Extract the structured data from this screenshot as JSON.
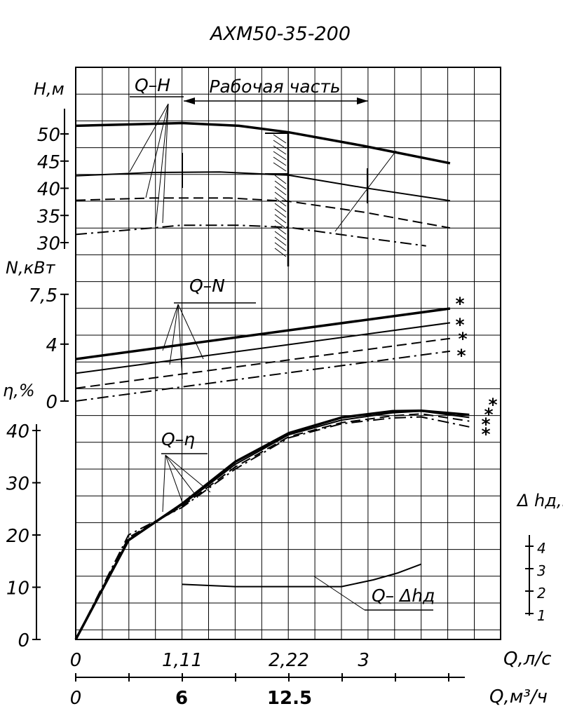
{
  "chart_data": {
    "type": "line",
    "title": "АХМ50-35-200",
    "x_axis": {
      "label": "Q,л/с",
      "ticks": [
        "0",
        "1,11",
        "2,22",
        "3"
      ],
      "range": [
        0,
        4.05
      ]
    },
    "x2_axis": {
      "label": "Q,м³/ч",
      "ticks": [
        "0",
        "6",
        "12.5"
      ],
      "range": [
        0,
        14.6
      ]
    },
    "head_axis": {
      "label": "Н,м",
      "ticks": [
        "30",
        "35",
        "40",
        "45",
        "50"
      ],
      "range": [
        30,
        52
      ]
    },
    "power_axis": {
      "label": "N,кВт",
      "ticks": [
        "0",
        "4",
        "7,5"
      ],
      "range": [
        0,
        7.5
      ]
    },
    "efficiency_axis": {
      "label": "η,%",
      "ticks": [
        "0",
        "10",
        "20",
        "30",
        "40"
      ],
      "range": [
        0,
        40
      ]
    },
    "npsh_axis": {
      "label": "Δ hд,м",
      "ticks": [
        "1",
        "2",
        "3",
        "4"
      ],
      "range": [
        1,
        4
      ]
    },
    "labels": {
      "qh": "Q–H",
      "working": "Рабочая часть",
      "qn": "Q–N",
      "qeta": "Q–η",
      "qnpsh": "Q– Δhд",
      "star": "*"
    },
    "series": [
      {
        "group": "Q-H",
        "style": "thick",
        "x": [
          0,
          1.11,
          1.7,
          2.22,
          3,
          3.9
        ],
        "y": [
          51.5,
          52,
          51.5,
          50.3,
          47.8,
          44.6
        ]
      },
      {
        "group": "Q-H",
        "style": "solid",
        "x": [
          0,
          0.8,
          1.5,
          2.22,
          3,
          3.9
        ],
        "y": [
          42.3,
          42.9,
          43,
          42.4,
          40.1,
          37.7
        ]
      },
      {
        "group": "Q-H",
        "style": "dashed",
        "x": [
          0,
          0.8,
          1.6,
          2.22,
          3,
          3.9
        ],
        "y": [
          37.8,
          38.2,
          38.2,
          37.6,
          35.6,
          32.7
        ]
      },
      {
        "group": "Q-H",
        "style": "dashdot",
        "x": [
          0,
          0.8,
          1.1,
          1.7,
          2.22,
          3,
          3.65
        ],
        "y": [
          31.5,
          32.7,
          33.2,
          33.2,
          32.8,
          30.9,
          29.4
        ]
      },
      {
        "group": "Q-N",
        "style": "thick",
        "x": [
          0,
          3.9
        ],
        "y": [
          2.95,
          6.5
        ]
      },
      {
        "group": "Q-N",
        "style": "solid",
        "x": [
          0,
          3.9
        ],
        "y": [
          1.95,
          5.5
        ]
      },
      {
        "group": "Q-N",
        "style": "dashed",
        "x": [
          0,
          3.9
        ],
        "y": [
          0.9,
          4.4
        ]
      },
      {
        "group": "Q-N",
        "style": "dashdot",
        "x": [
          0,
          3.9
        ],
        "y": [
          0,
          3.5
        ]
      },
      {
        "group": "Q-η",
        "style": "thick",
        "x": [
          0,
          0.55,
          1.11,
          1.66,
          2.22,
          2.77,
          3.3,
          3.6,
          4.1
        ],
        "y": [
          0,
          19,
          26,
          34,
          39.5,
          42.5,
          43.7,
          43.8,
          43.0
        ]
      },
      {
        "group": "Q-η",
        "style": "solid",
        "x": [
          0,
          0.55,
          1.11,
          1.66,
          2.22,
          2.77,
          3.3,
          3.6,
          4.1
        ],
        "y": [
          0,
          19,
          25.8,
          33.5,
          39.2,
          42,
          43.4,
          43.7,
          42.5
        ]
      },
      {
        "group": "Q-η",
        "style": "dashed",
        "x": [
          0,
          0.55,
          1.11,
          1.66,
          2.22,
          2.77,
          3.3,
          3.6,
          4.1
        ],
        "y": [
          0,
          19.5,
          25.5,
          33,
          38.8,
          41.5,
          42.8,
          43.2,
          41.8
        ]
      },
      {
        "group": "Q-η",
        "style": "dashdot",
        "x": [
          0,
          0.55,
          1.11,
          1.66,
          2.22,
          2.77,
          3.3,
          3.6,
          4.1
        ],
        "y": [
          0,
          20,
          25.3,
          32.6,
          38.6,
          41.3,
          42.4,
          42.6,
          40.7
        ]
      },
      {
        "group": "Q-Δhд",
        "style": "solid",
        "x": [
          1.11,
          1.66,
          2.22,
          2.77,
          3.1,
          3.35,
          3.6
        ],
        "y": [
          2.3,
          2.2,
          2.2,
          2.2,
          2.5,
          2.8,
          3.2
        ]
      }
    ]
  }
}
